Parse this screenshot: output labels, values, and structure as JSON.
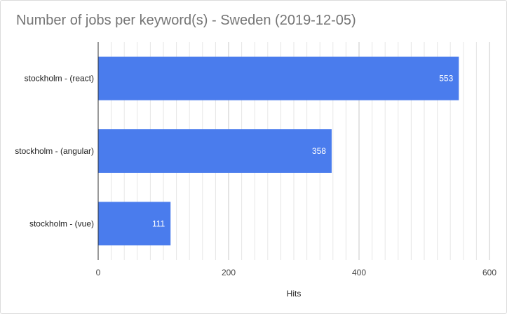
{
  "chart_data": {
    "type": "bar",
    "orientation": "horizontal",
    "title": "Number of jobs per keyword(s) - Sweden (2019-12-05)",
    "xlabel": "Hits",
    "ylabel": "",
    "categories": [
      "stockholm - (react)",
      "stockholm - (angular)",
      "stockholm - (vue)"
    ],
    "values": [
      553,
      358,
      111
    ],
    "data_labels": [
      "553",
      "358",
      "111"
    ],
    "xlim": [
      0,
      600
    ],
    "xticks": [
      0,
      200,
      400,
      600
    ],
    "x_tick_labels": [
      "0",
      "200",
      "400",
      "600"
    ],
    "minor_grid_step": 20,
    "grid": true,
    "legend": "none",
    "bar_color": "#4a7ced"
  }
}
